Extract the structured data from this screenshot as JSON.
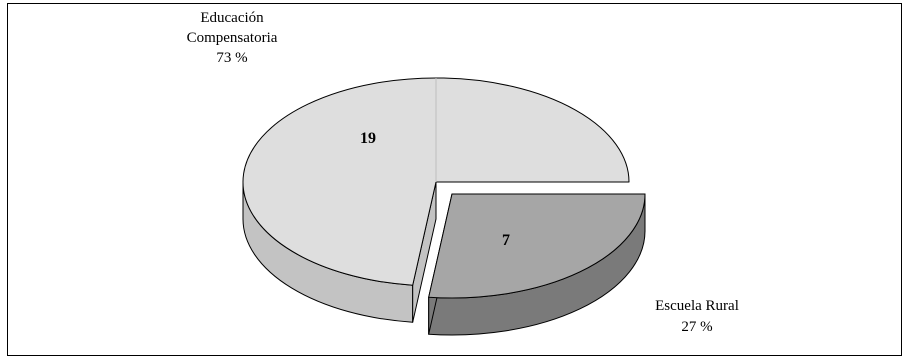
{
  "chart_data": {
    "type": "pie",
    "slices": [
      {
        "label_lines": [
          "Educación",
          "Compensatoria"
        ],
        "percent": "73 %",
        "value": 19,
        "color": "#dedede",
        "side_color": "#c3c3c3",
        "exploded": false
      },
      {
        "label_lines": [
          "Escuela Rural"
        ],
        "percent": "27 %",
        "value": 7,
        "color": "#a6a6a6",
        "side_color": "#7a7a7a",
        "exploded": true
      }
    ],
    "style": "3d-exploded",
    "legend": "none"
  }
}
